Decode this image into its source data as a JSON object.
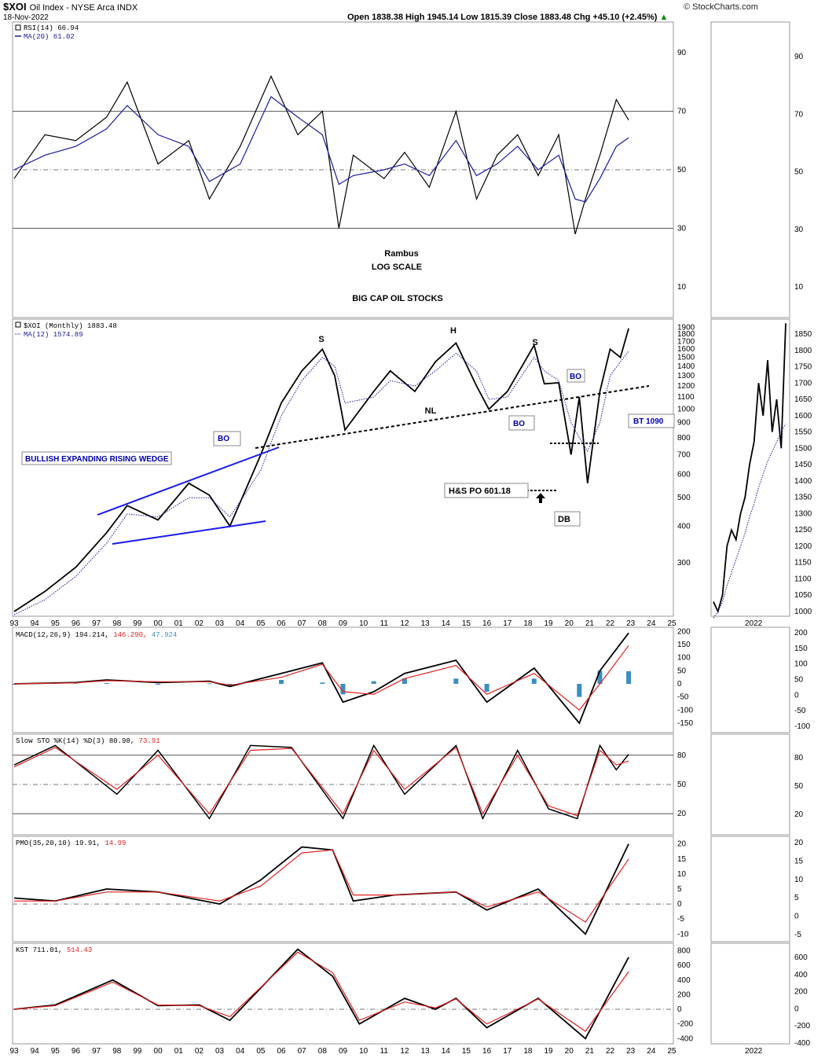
{
  "header": {
    "symbol": "$XOI",
    "description": "Oil Index - NYSE Arca INDX",
    "date": "18-Nov-2022",
    "ohlc": "Open 1838.38  High 1945.14  Low 1815.39  Close 1883.48  Chg +45.10 (+2.45%)",
    "ohlc_arrow": "▲",
    "watermark": "© StockCharts.com"
  },
  "colors": {
    "price": "#000000",
    "ma": "#1a1a9e",
    "signal": "#e02020",
    "hist": "#3a8fc0",
    "wedge": "#1a1aee",
    "rsi_fill": "#5c7a52",
    "annotation_blue": "#0000aa"
  },
  "chart_data": [
    {
      "id": "rsi",
      "type": "line",
      "legend": [
        {
          "label": "RSI(14) 66.94",
          "icon": "box-icon"
        },
        {
          "label": "MA(20) 61.02",
          "icon": "dash-icon"
        }
      ],
      "yticks": [
        90,
        70,
        50,
        30,
        10
      ],
      "ylim": [
        0,
        100
      ],
      "ref_lines": [
        70,
        50,
        30
      ],
      "x_years": [
        1993.0,
        1994.5,
        1996.0,
        1997.5,
        1998.5,
        2000.0,
        2001.5,
        2002.5,
        2004.0,
        2005.5,
        2006.8,
        2008.0,
        2008.8,
        2009.5,
        2011.0,
        2012.0,
        2013.2,
        2014.5,
        2015.5,
        2016.5,
        2017.5,
        2018.5,
        2019.5,
        2020.3,
        2020.8,
        2021.5,
        2022.3,
        2022.9
      ],
      "series": [
        {
          "values": [
            47,
            62,
            60,
            68,
            80,
            52,
            60,
            40,
            58,
            82,
            62,
            70,
            30,
            55,
            47,
            56,
            44,
            70,
            40,
            55,
            62,
            48,
            62,
            28,
            40,
            55,
            74,
            67
          ]
        },
        {
          "values": [
            50,
            55,
            58,
            64,
            72,
            62,
            58,
            46,
            52,
            75,
            68,
            62,
            45,
            48,
            50,
            52,
            48,
            60,
            48,
            52,
            58,
            50,
            55,
            40,
            39,
            47,
            58,
            61
          ]
        }
      ],
      "notes": [
        "Rambus",
        "LOG SCALE",
        "BIG CAP OIL STOCKS"
      ]
    },
    {
      "id": "price",
      "type": "line",
      "scale": "log",
      "legend": [
        {
          "label": "$XOI (Monthly) 1883.48",
          "icon": "box-icon"
        },
        {
          "label": "MA(12) 1574.89",
          "icon": "dot-icon"
        }
      ],
      "yticks": [
        1900,
        1800,
        1700,
        1600,
        1500,
        1400,
        1300,
        1200,
        1100,
        1000,
        900,
        800,
        700,
        600,
        500,
        400,
        300
      ],
      "ylim": [
        200,
        2000
      ],
      "x_years": [
        1993.0,
        1994.5,
        1996.0,
        1997.5,
        1998.5,
        2000.0,
        2001.5,
        2002.5,
        2003.5,
        2005.0,
        2006.0,
        2007.0,
        2008.0,
        2008.6,
        2009.1,
        2010.5,
        2011.3,
        2012.5,
        2013.5,
        2014.5,
        2015.5,
        2016.1,
        2017.0,
        2018.3,
        2018.8,
        2019.5,
        2020.1,
        2020.5,
        2020.9,
        2021.5,
        2022.0,
        2022.5,
        2022.9
      ],
      "series": [
        {
          "values": [
            205,
            240,
            290,
            380,
            470,
            420,
            560,
            510,
            400,
            700,
            1050,
            1350,
            1600,
            1300,
            850,
            1150,
            1350,
            1150,
            1450,
            1680,
            1200,
            1000,
            1150,
            1650,
            1220,
            1230,
            700,
            1100,
            560,
            1150,
            1600,
            1500,
            1883
          ]
        },
        {
          "values": [
            200,
            225,
            270,
            350,
            440,
            430,
            500,
            500,
            430,
            620,
            950,
            1250,
            1500,
            1400,
            1050,
            1100,
            1250,
            1200,
            1350,
            1550,
            1350,
            1080,
            1100,
            1500,
            1350,
            1250,
            900,
            800,
            720,
            900,
            1300,
            1450,
            1575
          ]
        }
      ],
      "xticks": [
        "93",
        "94",
        "95",
        "96",
        "97",
        "98",
        "99",
        "00",
        "01",
        "02",
        "03",
        "04",
        "05",
        "06",
        "07",
        "08",
        "09",
        "10",
        "11",
        "12",
        "13",
        "14",
        "15",
        "16",
        "17",
        "18",
        "19",
        "20",
        "21",
        "22",
        "23",
        "24",
        "25"
      ],
      "annotations": {
        "wedge_label": "BULLISH EXPANDING RISING WEDGE",
        "bo1": "BO",
        "bo2": "BO",
        "bo3": "BO",
        "s_left": "S",
        "h": "H",
        "s_right": "S",
        "nl": "NL",
        "hs_po": "H&S PO 601.18",
        "db": "DB",
        "bt": "BT 1090"
      }
    },
    {
      "id": "macd",
      "type": "line",
      "legend": {
        "name": "MACD(12,26,9)",
        "v1": "194.214,",
        "v2": "146.290,",
        "v3": "47.924"
      },
      "yticks": [
        200,
        150,
        100,
        50,
        0,
        -50,
        -100,
        -150
      ],
      "ylim": [
        -180,
        210
      ],
      "x_years": [
        1993.0,
        1996.0,
        1997.5,
        2000.0,
        2002.5,
        2003.5,
        2006.0,
        2008.0,
        2009.0,
        2010.5,
        2012.0,
        2014.5,
        2016.0,
        2018.3,
        2020.5,
        2021.5,
        2022.9
      ],
      "series": [
        {
          "name": "MACD",
          "values": [
            0,
            5,
            15,
            5,
            10,
            -10,
            40,
            80,
            -70,
            -30,
            40,
            90,
            -70,
            60,
            -150,
            50,
            194
          ]
        },
        {
          "name": "signal",
          "values": [
            0,
            4,
            12,
            8,
            8,
            -5,
            25,
            75,
            -30,
            -40,
            20,
            70,
            -40,
            40,
            -100,
            0,
            146
          ]
        },
        {
          "name": "hist",
          "values": [
            0,
            1,
            3,
            -3,
            2,
            -5,
            15,
            5,
            -40,
            10,
            20,
            20,
            -30,
            20,
            -50,
            50,
            48
          ]
        }
      ]
    },
    {
      "id": "stoch",
      "type": "line",
      "legend": {
        "name": "Slow STO %K(14) %D(3)",
        "v1": "80.98,",
        "v2": "73.91"
      },
      "yticks": [
        80,
        50,
        20
      ],
      "ylim": [
        0,
        100
      ],
      "ref_lines": [
        80,
        50,
        20
      ],
      "x_years": [
        1993.0,
        1995.0,
        1998.0,
        2000.0,
        2002.5,
        2004.5,
        2006.5,
        2009.0,
        2010.5,
        2012.0,
        2014.5,
        2015.8,
        2017.5,
        2019.0,
        2020.4,
        2021.5,
        2022.3,
        2022.9
      ],
      "series": [
        {
          "name": "%K",
          "values": [
            70,
            90,
            40,
            85,
            15,
            90,
            88,
            15,
            90,
            40,
            90,
            15,
            85,
            25,
            15,
            90,
            65,
            81
          ]
        },
        {
          "name": "%D",
          "values": [
            68,
            88,
            45,
            80,
            20,
            85,
            87,
            20,
            85,
            45,
            88,
            20,
            80,
            28,
            18,
            85,
            70,
            74
          ]
        }
      ]
    },
    {
      "id": "pmo",
      "type": "line",
      "legend": {
        "name": "PMO(35,20,10)",
        "v1": "19.91,",
        "v2": "14.99"
      },
      "yticks": [
        20,
        15,
        10,
        5,
        0,
        -5,
        -10
      ],
      "ylim": [
        -12,
        22
      ],
      "ref_lines": [
        0
      ],
      "x_years": [
        1993.0,
        1995.0,
        1997.5,
        2000.0,
        2003.0,
        2005.0,
        2007.0,
        2008.5,
        2009.5,
        2011.5,
        2014.5,
        2016.0,
        2018.5,
        2020.8,
        2022.9
      ],
      "series": [
        {
          "name": "PMO",
          "values": [
            2,
            1,
            5,
            4,
            0,
            8,
            19,
            18,
            1,
            3,
            4,
            -2,
            5,
            -10,
            20
          ]
        },
        {
          "name": "signal",
          "values": [
            1,
            1,
            4,
            4,
            1,
            6,
            17,
            18,
            3,
            3,
            4,
            -1,
            4,
            -6,
            15
          ]
        }
      ]
    },
    {
      "id": "kst",
      "type": "line",
      "legend": {
        "name": "KST",
        "v1": "711.01,",
        "v2": "514.43"
      },
      "yticks": [
        800,
        600,
        400,
        200,
        0,
        -200,
        -400
      ],
      "ylim": [
        -450,
        880
      ],
      "ref_lines": [
        0
      ],
      "x_years": [
        1993.0,
        1995.0,
        1997.8,
        2000.0,
        2002.0,
        2003.5,
        2006.8,
        2008.5,
        2009.8,
        2012.0,
        2013.5,
        2014.5,
        2016.0,
        2018.5,
        2020.8,
        2022.9
      ],
      "series": [
        {
          "name": "KST",
          "values": [
            0,
            60,
            400,
            50,
            60,
            -150,
            820,
            450,
            -200,
            150,
            0,
            150,
            -250,
            150,
            -400,
            711
          ]
        },
        {
          "name": "signal",
          "values": [
            0,
            50,
            370,
            60,
            50,
            -100,
            780,
            500,
            -150,
            100,
            20,
            140,
            -200,
            140,
            -300,
            514
          ]
        }
      ]
    }
  ],
  "side_chart": {
    "label": "2022",
    "rsi_ticks": [
      90,
      70,
      50,
      30,
      10
    ],
    "price_ticks": [
      1850,
      1800,
      1750,
      1700,
      1650,
      1600,
      1550,
      1500,
      1450,
      1400,
      1350,
      1300,
      1250,
      1200,
      1150,
      1100,
      1050,
      1000
    ],
    "macd_ticks": [
      200,
      150,
      100,
      50,
      0,
      -50,
      -100
    ],
    "stoch_ticks": [
      80,
      50,
      20
    ],
    "pmo_ticks": [
      20,
      15,
      10,
      5,
      0,
      -5
    ],
    "kst_ticks": [
      600,
      400,
      200,
      0,
      -200,
      -400
    ],
    "price": [
      1030,
      1000,
      1050,
      1200,
      1250,
      1220,
      1300,
      1350,
      1450,
      1520,
      1700,
      1600,
      1770,
      1550,
      1650,
      1500,
      1883
    ],
    "price_ma": [
      980,
      1000,
      1030,
      1080,
      1120,
      1160,
      1200,
      1240,
      1290,
      1330,
      1380,
      1420,
      1460,
      1490,
      1520,
      1550,
      1575
    ]
  }
}
